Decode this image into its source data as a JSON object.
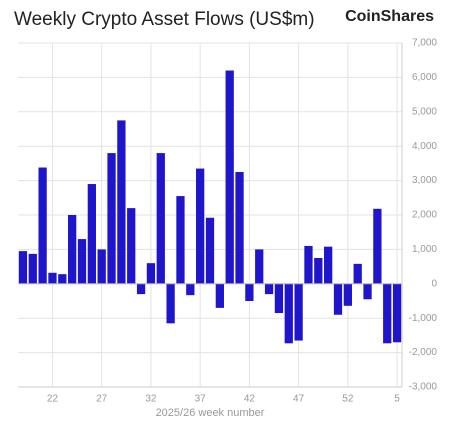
{
  "chart_data": {
    "type": "bar",
    "title": "Weekly Crypto Asset Flows (US$m)",
    "brand": "CoinShares",
    "x_label": "2025/26 week number",
    "categories": [
      null,
      null,
      null,
      "22",
      null,
      null,
      null,
      null,
      "27",
      null,
      null,
      null,
      null,
      "32",
      null,
      null,
      null,
      null,
      "37",
      null,
      null,
      null,
      null,
      "42",
      null,
      null,
      null,
      null,
      "47",
      null,
      null,
      null,
      null,
      "52",
      null,
      null,
      null,
      null,
      "5"
    ],
    "values": [
      950,
      870,
      3380,
      320,
      280,
      2000,
      1300,
      2900,
      1000,
      3800,
      4750,
      2200,
      -300,
      600,
      3800,
      -1150,
      2550,
      -330,
      3350,
      1920,
      -700,
      6200,
      3250,
      -500,
      1000,
      -300,
      -850,
      -1730,
      -1650,
      1100,
      750,
      1080,
      -900,
      -640,
      580,
      -450,
      2180,
      -1730,
      -1700
    ],
    "color": "#1f16cc",
    "ylim": [
      -3000,
      7000
    ],
    "yticks": [
      {
        "value": -3000,
        "label": "-3,000"
      },
      {
        "value": -2000,
        "label": "-2,000"
      },
      {
        "value": -1000,
        "label": "-1,000"
      },
      0,
      {
        "value": 1000,
        "label": "1,000"
      },
      {
        "value": 2000,
        "label": "2,000"
      },
      {
        "value": 3000,
        "label": "3,000"
      },
      {
        "value": 4000,
        "label": "4,000"
      },
      {
        "value": 5000,
        "label": "5,000"
      },
      {
        "value": 6000,
        "label": "6,000"
      },
      {
        "value": 7000,
        "label": "7,000"
      }
    ],
    "grid": true,
    "y_axis_side": "right"
  }
}
